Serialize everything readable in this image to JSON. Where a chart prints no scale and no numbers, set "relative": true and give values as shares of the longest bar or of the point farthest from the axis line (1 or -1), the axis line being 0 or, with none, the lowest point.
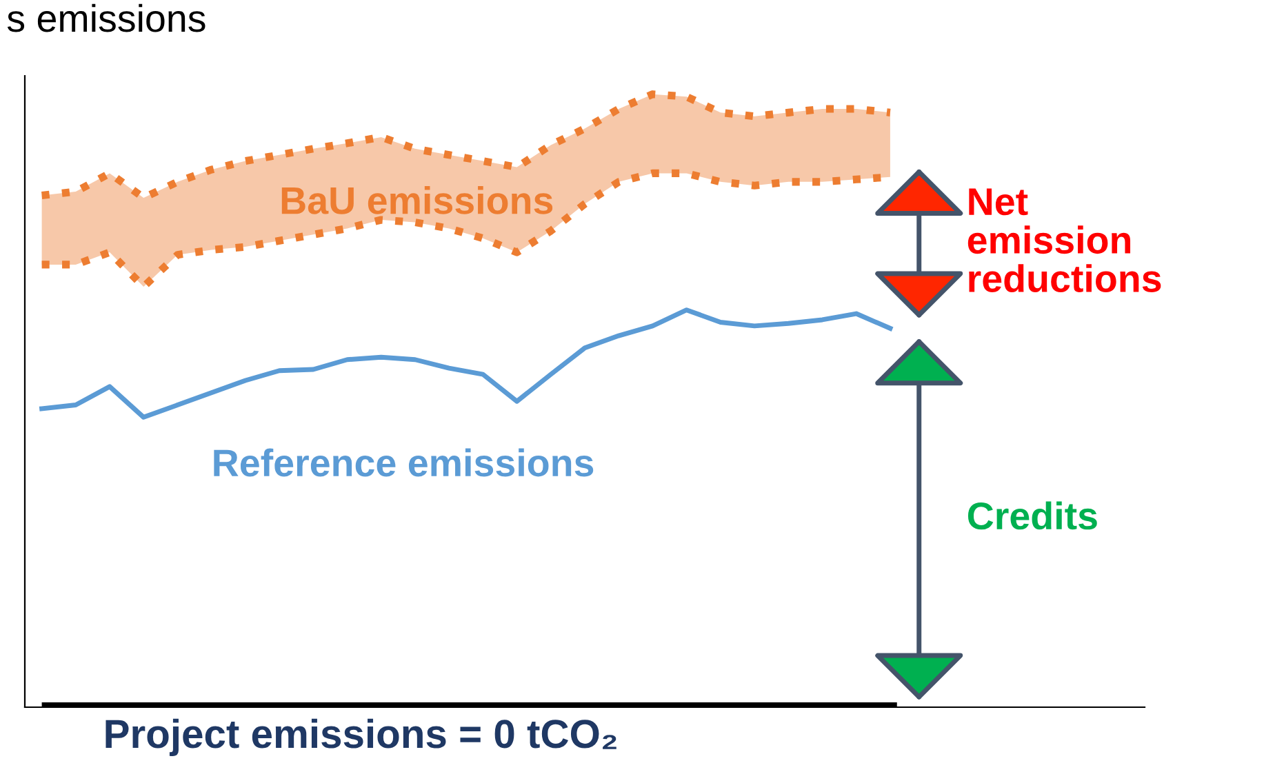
{
  "chart_data": {
    "type": "line",
    "relative": true,
    "title": "s emissions",
    "xlabel": "Project emissions = 0 tCO₂",
    "categories": [
      null,
      null,
      null,
      null,
      null,
      null,
      null,
      null,
      null,
      null,
      null,
      null,
      null,
      null,
      null,
      null,
      null,
      null,
      null,
      null,
      null,
      null,
      null,
      null,
      null,
      null
    ],
    "series": [
      {
        "color": "#ed7d31",
        "line_style": "dotted",
        "values": [
          0.835,
          0.841,
          0.871,
          0.831,
          0.857,
          0.877,
          0.891,
          0.901,
          0.911,
          0.92,
          0.93,
          0.911,
          0.901,
          0.891,
          0.881,
          0.917,
          0.944,
          0.976,
          1.0,
          0.996,
          0.97,
          0.964,
          0.97,
          0.976,
          0.976,
          0.97
        ]
      },
      {
        "name": "BaU emissions",
        "color": "#ed7d31",
        "line_style": "dotted",
        "values": [
          0.722,
          0.722,
          0.742,
          0.686,
          0.738,
          0.746,
          0.751,
          0.761,
          0.771,
          0.781,
          0.795,
          0.791,
          0.781,
          0.765,
          0.742,
          0.777,
          0.821,
          0.857,
          0.871,
          0.871,
          0.857,
          0.851,
          0.857,
          0.857,
          0.861,
          0.865
        ],
        "lower": [
          0.722,
          0.722,
          0.742,
          0.686,
          0.738,
          0.746,
          0.751,
          0.761,
          0.771,
          0.781,
          0.795,
          0.791,
          0.781,
          0.765,
          0.742,
          0.777,
          0.821,
          0.857,
          0.871,
          0.871,
          0.857,
          0.851,
          0.857,
          0.857,
          0.861,
          0.865
        ],
        "upper": [
          0.835,
          0.841,
          0.871,
          0.831,
          0.857,
          0.877,
          0.891,
          0.901,
          0.911,
          0.92,
          0.93,
          0.911,
          0.901,
          0.891,
          0.881,
          0.917,
          0.944,
          0.976,
          1.0,
          0.996,
          0.97,
          0.964,
          0.97,
          0.976,
          0.976,
          0.97
        ]
      },
      {
        "name": "Reference emissions",
        "color": "#5b9bd5",
        "line_style": "solid",
        "values": [
          0.487,
          0.493,
          0.523,
          0.473,
          0.493,
          0.513,
          0.533,
          0.549,
          0.551,
          0.567,
          0.571,
          0.567,
          0.553,
          0.543,
          0.499,
          0.543,
          0.586,
          0.606,
          0.622,
          0.648,
          0.628,
          0.622,
          0.626,
          0.632,
          0.642,
          0.618
        ]
      }
    ],
    "ref_lines": [
      {
        "axis": "y",
        "value": 0,
        "color": "#000000"
      }
    ],
    "annotations": [
      "Net emission reductions",
      "Credits"
    ]
  }
}
